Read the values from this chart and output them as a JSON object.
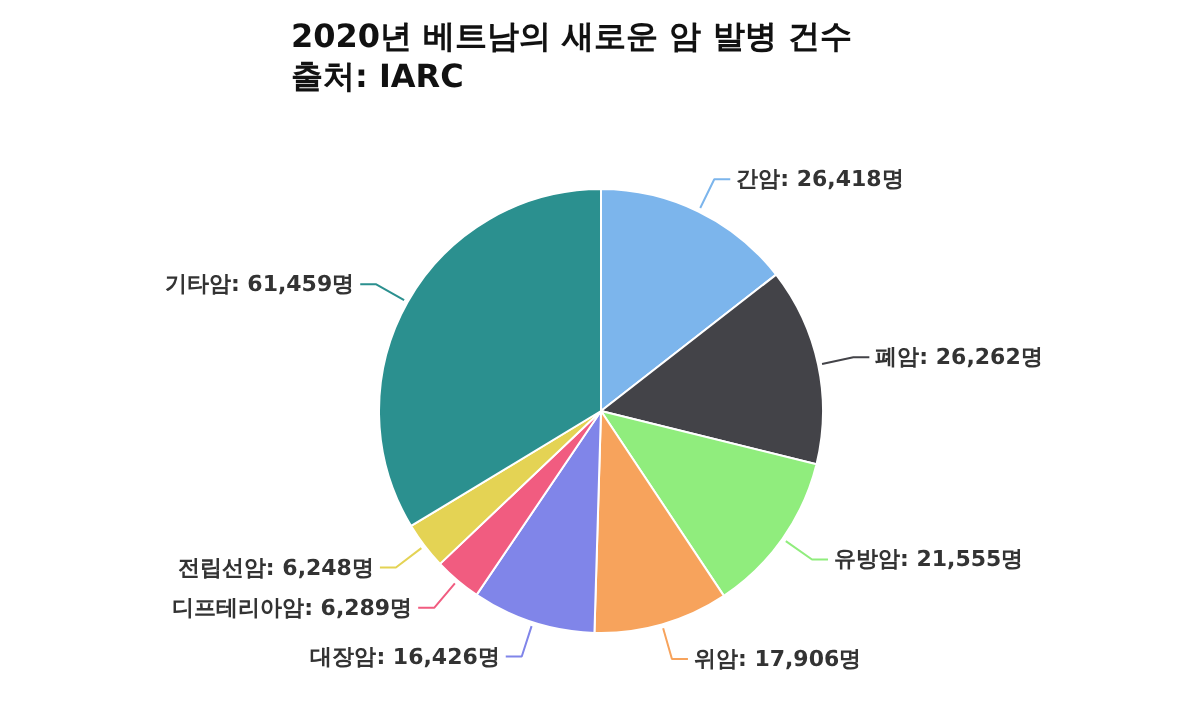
{
  "chart_data": {
    "type": "pie",
    "title": "2020년 베트남의 새로운 암 발병 건수",
    "subtitle": "출처: IARC",
    "categories": [
      "간암",
      "폐암",
      "유방암",
      "위암",
      "대장암",
      "디프테리아암",
      "전립선암",
      "기타암"
    ],
    "values": [
      26418,
      26262,
      21555,
      17906,
      16426,
      6289,
      6248,
      61459
    ],
    "value_labels": [
      "26,418명",
      "26,262명",
      "21,555명",
      "17,906명",
      "16,426명",
      "6,289명",
      "6,248명",
      "61,459명"
    ],
    "colors": [
      "#7cb5ec",
      "#434348",
      "#90ed7d",
      "#f7a35c",
      "#8085e9",
      "#f15c80",
      "#e4d354",
      "#2b908f"
    ]
  }
}
